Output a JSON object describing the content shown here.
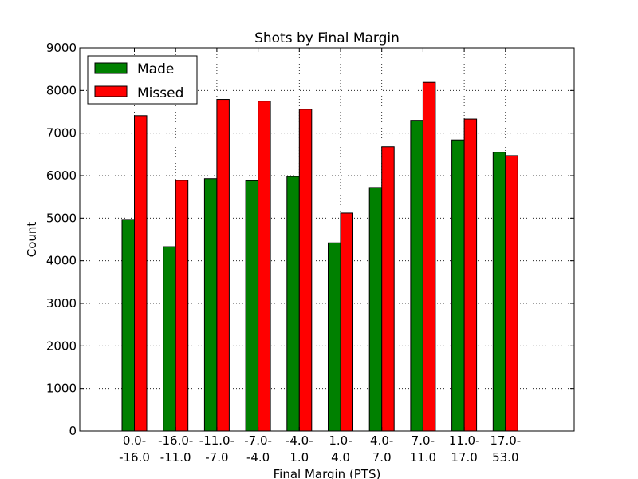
{
  "chart_data": {
    "type": "bar",
    "title": "Shots by Final Margin",
    "xlabel": "Final Margin (PTS)",
    "ylabel": "Count",
    "ylim": [
      0,
      9000
    ],
    "yticks": [
      0,
      1000,
      2000,
      3000,
      4000,
      5000,
      6000,
      7000,
      8000,
      9000
    ],
    "grid": true,
    "legend_position": "top-left",
    "categories": [
      [
        "0.0-",
        "-16.0"
      ],
      [
        "-16.0-",
        "-11.0"
      ],
      [
        "-11.0-",
        "-7.0"
      ],
      [
        "-7.0-",
        "-4.0"
      ],
      [
        "-4.0-",
        "1.0"
      ],
      [
        "1.0-",
        "4.0"
      ],
      [
        "4.0-",
        "7.0"
      ],
      [
        "7.0-",
        "11.0"
      ],
      [
        "11.0-",
        "17.0"
      ],
      [
        "17.0-",
        "53.0"
      ]
    ],
    "series": [
      {
        "name": "Made",
        "color": "#008000",
        "values": [
          4970,
          4330,
          5930,
          5880,
          5980,
          4420,
          5720,
          7300,
          6840,
          6550
        ]
      },
      {
        "name": "Missed",
        "color": "#ff0000",
        "values": [
          7410,
          5890,
          7790,
          7750,
          7560,
          5120,
          6680,
          8190,
          7330,
          6470
        ]
      }
    ]
  }
}
